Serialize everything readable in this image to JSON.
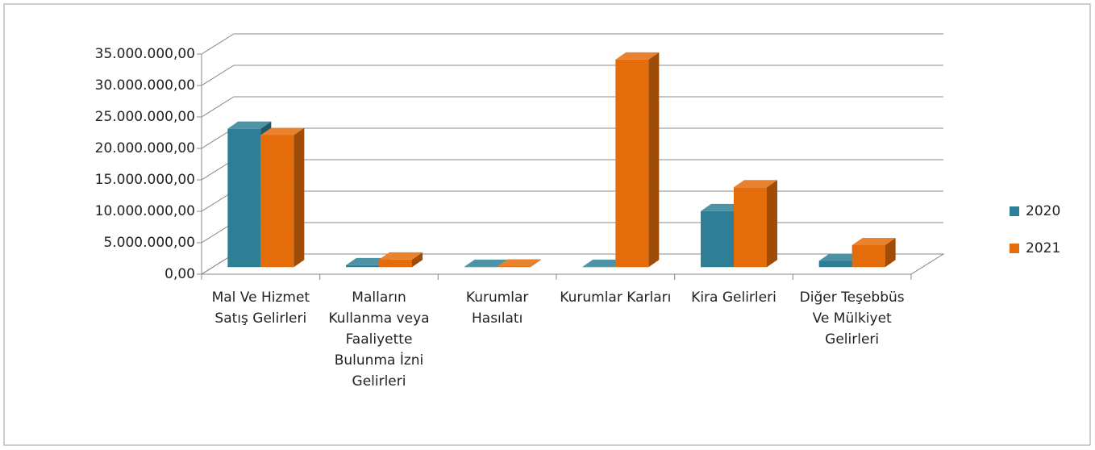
{
  "chart_data": {
    "type": "bar3d",
    "categories": [
      "Mal Ve Hizmet Satış Gelirleri",
      "Malların Kullanma veya Faaliyette Bulunma İzni Gelirleri",
      "Kurumlar Hasılatı",
      "Kurumlar Karları",
      "Kira Gelirleri",
      "Diğer Teşebbüs Ve Mülkiyet Gelirleri"
    ],
    "series": [
      {
        "name": "2020",
        "color": "#2e7f95",
        "values": [
          22000000,
          300000,
          50000,
          50000,
          8900000,
          1000000
        ]
      },
      {
        "name": "2021",
        "color": "#e46c0a",
        "values": [
          21000000,
          1200000,
          100000,
          33000000,
          12700000,
          3500000
        ]
      }
    ],
    "ylim": [
      0,
      35000000
    ],
    "yticks": [
      {
        "value": 0,
        "label": "0,00"
      },
      {
        "value": 5000000,
        "label": "5.000.000,00"
      },
      {
        "value": 10000000,
        "label": "10.000.000,00"
      },
      {
        "value": 15000000,
        "label": "15.000.000,00"
      },
      {
        "value": 20000000,
        "label": "20.000.000,00"
      },
      {
        "value": 25000000,
        "label": "25.000.000,00"
      },
      {
        "value": 30000000,
        "label": "30.000.000,00"
      },
      {
        "value": 35000000,
        "label": "35.000.000,00"
      }
    ],
    "grid": true,
    "legend": "right"
  }
}
